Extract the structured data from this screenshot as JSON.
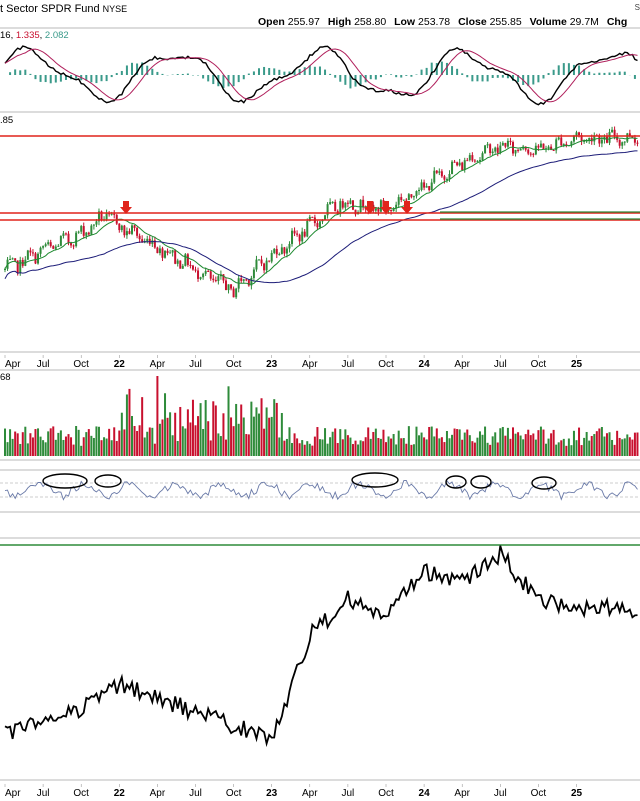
{
  "header": {
    "title": "t Sector SPDR Fund",
    "exchange": "NYSE",
    "corner": "S",
    "open_label": "Open",
    "open_value": "255.97",
    "high_label": "High",
    "high_value": "258.80",
    "low_label": "Low",
    "low_value": "253.78",
    "close_label": "Close",
    "close_value": "255.85",
    "volume_label": "Volume",
    "volume_value": "29.7M",
    "chg_label": "Chg"
  },
  "macd_legend": {
    "a": "16",
    "b": "1.335",
    "c": "2.082"
  },
  "price_legend": ".85",
  "volume_legend": "68",
  "colors": {
    "up": "#2e8b3a",
    "down": "#c8102e",
    "resist": "#e0241b",
    "support": "#2e8b3a",
    "ma_fast": "#1e8a30",
    "ma_slow": "#1c1c78",
    "macd": "#000000",
    "signal": "#b0205c",
    "hist": "#3a9a8a",
    "ratio": "#000000",
    "rsi": "#6a7aa8"
  },
  "x_axis_top": [
    "Apr",
    "Jul",
    "Oct",
    "22",
    "Apr",
    "Jul",
    "Oct",
    "23",
    "Apr",
    "Jul",
    "Oct",
    "24",
    "Apr",
    "Jul",
    "Oct",
    "25"
  ],
  "x_axis_bottom": [
    "Apr",
    "Jul",
    "Oct",
    "22",
    "Apr",
    "Jul",
    "Oct",
    "23",
    "Apr",
    "Jul",
    "Oct",
    "24",
    "Apr",
    "Jul",
    "Oct",
    "25"
  ],
  "chart_data": [
    {
      "type": "line",
      "panel": "price",
      "x": [
        "2021-04",
        "2021-07",
        "2021-10",
        "2021-12",
        "2022-01",
        "2022-04",
        "2022-07",
        "2022-10",
        "2022-12",
        "2023-04",
        "2023-06",
        "2023-07",
        "2023-08",
        "2023-10",
        "2024-01",
        "2024-04",
        "2024-07",
        "2024-10",
        "2025-01"
      ],
      "series": [
        {
          "values": [
            0.3,
            0.4,
            0.48,
            0.58,
            0.52,
            0.42,
            0.3,
            0.2,
            0.32,
            0.52,
            0.62,
            0.64,
            0.62,
            0.6,
            0.72,
            0.84,
            0.92,
            0.9,
            0.96
          ]
        }
      ],
      "markers": [
        "2021-12",
        "2023-06",
        "2023-07",
        "2023-08"
      ],
      "resistance_lines": 3,
      "support_lines": 2
    },
    {
      "type": "line",
      "panel": "ratio",
      "x": [
        "2021-04",
        "2021-07",
        "2021-10",
        "2022-01",
        "2022-04",
        "2022-07",
        "2022-10",
        "2023-01",
        "2023-04",
        "2023-07",
        "2023-10",
        "2024-01",
        "2024-04",
        "2024-07",
        "2024-10",
        "2025-01"
      ],
      "series": [
        {
          "values": [
            0.18,
            0.24,
            0.3,
            0.4,
            0.34,
            0.28,
            0.22,
            0.16,
            0.62,
            0.78,
            0.7,
            0.9,
            0.86,
            0.98,
            0.78,
            0.74
          ]
        }
      ]
    }
  ]
}
